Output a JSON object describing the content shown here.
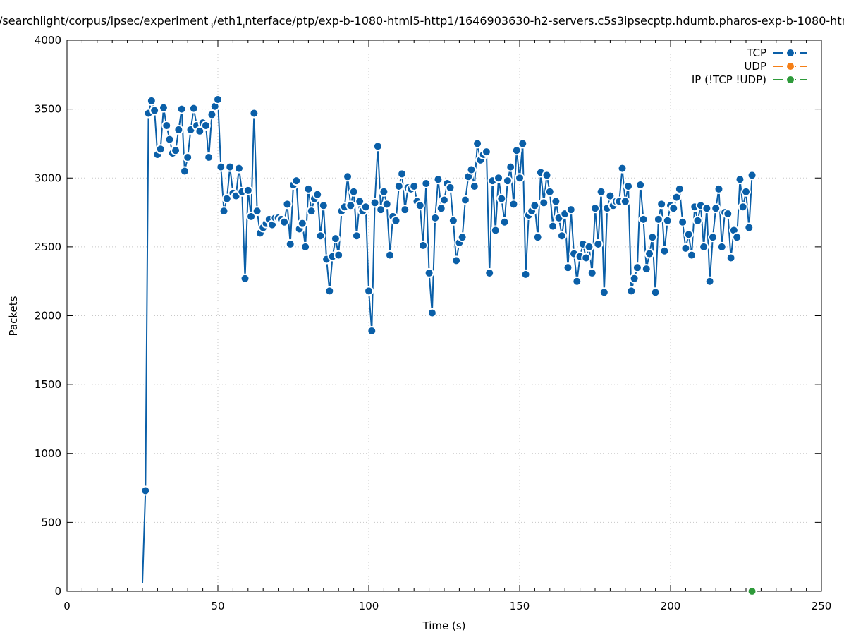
{
  "chart_data": {
    "type": "line",
    "title": "/searchlight/corpus/ipsec/experiment",
    "title_sub1": "3",
    "title_mid": "/eth1",
    "title_sub2": "i",
    "title_rest": "nterface/ptp/exp-b-1080-html5-http1/1646903630-h2-servers.c5s3ipsecptp.hdumb.pharos-exp-b-1080-htm",
    "xlabel": "Time (s)",
    "ylabel": "Packets",
    "xlim": [
      0,
      250
    ],
    "ylim": [
      0,
      4000
    ],
    "xticks": [
      0,
      50,
      100,
      150,
      200,
      250
    ],
    "yticks": [
      0,
      500,
      1000,
      1500,
      2000,
      2500,
      3000,
      3500,
      4000
    ],
    "xtick_labels": [
      "0",
      "50",
      "100",
      "150",
      "200",
      "250"
    ],
    "ytick_labels": [
      "0",
      "500",
      "1000",
      "1500",
      "2000",
      "2500",
      "3000",
      "3500",
      "4000"
    ],
    "grid": true,
    "legend_position": "top-right",
    "colors": {
      "TCP": "#0a5fa8",
      "UDP": "#f57f17",
      "IP": "#2e9a3a"
    },
    "series": [
      {
        "name": "TCP",
        "color": "#0a5fa8",
        "start_point": [
          25,
          60
        ],
        "x": [
          26,
          27,
          28,
          29,
          30,
          31,
          32,
          33,
          34,
          35,
          36,
          37,
          38,
          39,
          40,
          41,
          42,
          43,
          44,
          45,
          46,
          47,
          48,
          49,
          50,
          51,
          52,
          53,
          54,
          55,
          56,
          57,
          58,
          59,
          60,
          61,
          62,
          63,
          64,
          65,
          66,
          67,
          68,
          69,
          70,
          71,
          72,
          73,
          74,
          75,
          76,
          77,
          78,
          79,
          80,
          81,
          82,
          83,
          84,
          85,
          86,
          87,
          88,
          89,
          90,
          91,
          92,
          93,
          94,
          95,
          96,
          97,
          98,
          99,
          100,
          101,
          102,
          103,
          104,
          105,
          106,
          107,
          108,
          109,
          110,
          111,
          112,
          113,
          114,
          115,
          116,
          117,
          118,
          119,
          120,
          121,
          122,
          123,
          124,
          125,
          126,
          127,
          128,
          129,
          130,
          131,
          132,
          133,
          134,
          135,
          136,
          137,
          138,
          139,
          140,
          141,
          142,
          143,
          144,
          145,
          146,
          147,
          148,
          149,
          150,
          151,
          152,
          153,
          154,
          155,
          156,
          157,
          158,
          159,
          160,
          161,
          162,
          163,
          164,
          165,
          166,
          167,
          168,
          169,
          170,
          171,
          172,
          173,
          174,
          175,
          176,
          177,
          178,
          179,
          180,
          181,
          182,
          183,
          184,
          185,
          186,
          187,
          188,
          189,
          190,
          191,
          192,
          193,
          194,
          195,
          196,
          197,
          198,
          199,
          200,
          201,
          202,
          203,
          204,
          205,
          206,
          207,
          208,
          209,
          210,
          211,
          212,
          213,
          214,
          215,
          216,
          217,
          218,
          219,
          220,
          221,
          222,
          223,
          224,
          225,
          226,
          227
        ],
        "values": [
          730,
          3470,
          3560,
          3490,
          3170,
          3210,
          3510,
          3380,
          3280,
          3180,
          3200,
          3350,
          3500,
          3050,
          3150,
          3350,
          3505,
          3380,
          3340,
          3400,
          3380,
          3150,
          3460,
          3520,
          3570,
          3080,
          2760,
          2850,
          3080,
          2890,
          2870,
          3070,
          2900,
          2270,
          2910,
          2720,
          3470,
          2760,
          2600,
          2640,
          2670,
          2700,
          2660,
          2710,
          2710,
          2700,
          2680,
          2810,
          2520,
          2950,
          2980,
          2630,
          2670,
          2500,
          2920,
          2760,
          2850,
          2880,
          2580,
          2800,
          2410,
          2180,
          2430,
          2560,
          2440,
          2760,
          2790,
          3010,
          2800,
          2900,
          2580,
          2830,
          2760,
          2790,
          2180,
          1890,
          2820,
          3230,
          2770,
          2900,
          2810,
          2440,
          2720,
          2690,
          2940,
          3030,
          2770,
          2930,
          2920,
          2940,
          2830,
          2800,
          2510,
          2960,
          2310,
          2020,
          2710,
          2990,
          2780,
          2840,
          2960,
          2930,
          2690,
          2400,
          2530,
          2570,
          2840,
          3010,
          3060,
          2940,
          3250,
          3130,
          3170,
          3190,
          2310,
          2980,
          2620,
          3000,
          2850,
          2680,
          2980,
          3080,
          2810,
          3200,
          3000,
          3250,
          2300,
          2730,
          2760,
          2800,
          2570,
          3040,
          2820,
          3020,
          2900,
          2650,
          2830,
          2710,
          2580,
          2740,
          2350,
          2770,
          2450,
          2250,
          2430,
          2520,
          2420,
          2500,
          2310,
          2780,
          2520,
          2900,
          2170,
          2780,
          2870,
          2800,
          2830,
          2830,
          3070,
          2830,
          2940,
          2180,
          2270,
          2350,
          2950,
          2700,
          2340,
          2450,
          2570,
          2170,
          2700,
          2810,
          2470,
          2690,
          2800,
          2780,
          2860,
          2920,
          2680,
          2490,
          2590,
          2440,
          2790,
          2690,
          2800,
          2500,
          2780,
          2250,
          2570,
          2780,
          2920,
          2500,
          2750,
          2740,
          2420,
          2620,
          2570,
          2990,
          2790,
          2900,
          2640,
          3020
        ]
      },
      {
        "name": "UDP",
        "color": "#f57f17",
        "x": [],
        "values": []
      },
      {
        "name": "IP (!TCP  !UDP)",
        "color": "#2e9a3a",
        "x": [
          227
        ],
        "values": [
          0
        ]
      }
    ]
  }
}
